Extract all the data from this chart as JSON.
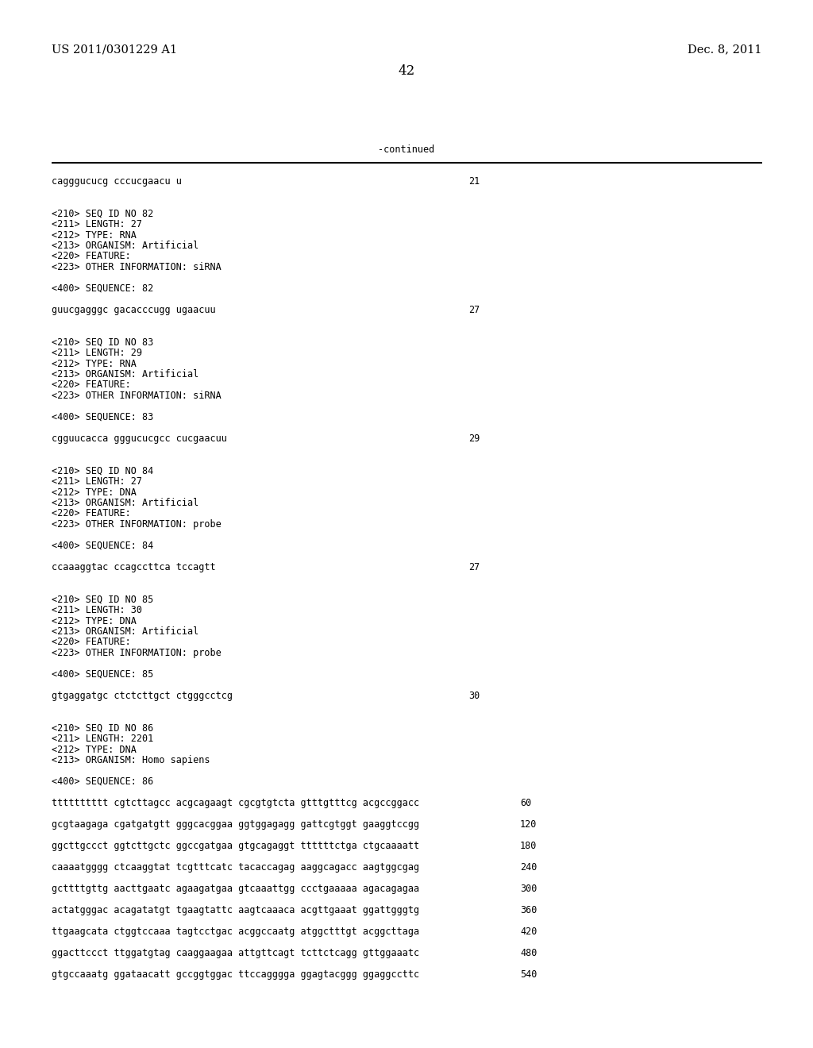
{
  "background_color": "#ffffff",
  "header_left": "US 2011/0301229 A1",
  "header_right": "Dec. 8, 2011",
  "page_number": "42",
  "continued_label": "-continued",
  "text_color": "#000000",
  "font_size_header": 10.5,
  "font_size_content": 8.5,
  "font_size_page": 12,
  "content_lines": [
    {
      "text": "cagggucucg cccucgaacu u",
      "num": "21",
      "blank_after": 2
    },
    {
      "text": "<210> SEQ ID NO 82",
      "num": null,
      "blank_after": 0
    },
    {
      "text": "<211> LENGTH: 27",
      "num": null,
      "blank_after": 0
    },
    {
      "text": "<212> TYPE: RNA",
      "num": null,
      "blank_after": 0
    },
    {
      "text": "<213> ORGANISM: Artificial",
      "num": null,
      "blank_after": 0
    },
    {
      "text": "<220> FEATURE:",
      "num": null,
      "blank_after": 0
    },
    {
      "text": "<223> OTHER INFORMATION: siRNA",
      "num": null,
      "blank_after": 1
    },
    {
      "text": "<400> SEQUENCE: 82",
      "num": null,
      "blank_after": 1
    },
    {
      "text": "guucgagggc gacacccugg ugaacuu",
      "num": "27",
      "blank_after": 2
    },
    {
      "text": "<210> SEQ ID NO 83",
      "num": null,
      "blank_after": 0
    },
    {
      "text": "<211> LENGTH: 29",
      "num": null,
      "blank_after": 0
    },
    {
      "text": "<212> TYPE: RNA",
      "num": null,
      "blank_after": 0
    },
    {
      "text": "<213> ORGANISM: Artificial",
      "num": null,
      "blank_after": 0
    },
    {
      "text": "<220> FEATURE:",
      "num": null,
      "blank_after": 0
    },
    {
      "text": "<223> OTHER INFORMATION: siRNA",
      "num": null,
      "blank_after": 1
    },
    {
      "text": "<400> SEQUENCE: 83",
      "num": null,
      "blank_after": 1
    },
    {
      "text": "cgguucacca gggucucgcc cucgaacuu",
      "num": "29",
      "blank_after": 2
    },
    {
      "text": "<210> SEQ ID NO 84",
      "num": null,
      "blank_after": 0
    },
    {
      "text": "<211> LENGTH: 27",
      "num": null,
      "blank_after": 0
    },
    {
      "text": "<212> TYPE: DNA",
      "num": null,
      "blank_after": 0
    },
    {
      "text": "<213> ORGANISM: Artificial",
      "num": null,
      "blank_after": 0
    },
    {
      "text": "<220> FEATURE:",
      "num": null,
      "blank_after": 0
    },
    {
      "text": "<223> OTHER INFORMATION: probe",
      "num": null,
      "blank_after": 1
    },
    {
      "text": "<400> SEQUENCE: 84",
      "num": null,
      "blank_after": 1
    },
    {
      "text": "ccaaaggtac ccagccttca tccagtt",
      "num": "27",
      "blank_after": 2
    },
    {
      "text": "<210> SEQ ID NO 85",
      "num": null,
      "blank_after": 0
    },
    {
      "text": "<211> LENGTH: 30",
      "num": null,
      "blank_after": 0
    },
    {
      "text": "<212> TYPE: DNA",
      "num": null,
      "blank_after": 0
    },
    {
      "text": "<213> ORGANISM: Artificial",
      "num": null,
      "blank_after": 0
    },
    {
      "text": "<220> FEATURE:",
      "num": null,
      "blank_after": 0
    },
    {
      "text": "<223> OTHER INFORMATION: probe",
      "num": null,
      "blank_after": 1
    },
    {
      "text": "<400> SEQUENCE: 85",
      "num": null,
      "blank_after": 1
    },
    {
      "text": "gtgaggatgc ctctcttgct ctgggcctcg",
      "num": "30",
      "blank_after": 2
    },
    {
      "text": "<210> SEQ ID NO 86",
      "num": null,
      "blank_after": 0
    },
    {
      "text": "<211> LENGTH: 2201",
      "num": null,
      "blank_after": 0
    },
    {
      "text": "<212> TYPE: DNA",
      "num": null,
      "blank_after": 0
    },
    {
      "text": "<213> ORGANISM: Homo sapiens",
      "num": null,
      "blank_after": 1
    },
    {
      "text": "<400> SEQUENCE: 86",
      "num": null,
      "blank_after": 1
    },
    {
      "text": "tttttttttt cgtcttagcc acgcagaagt cgcgtgtcta gtttgtttcg acgccggacc",
      "num": "60",
      "blank_after": 1
    },
    {
      "text": "gcgtaagaga cgatgatgtt gggcacggaa ggtggagagg gattcgtggt gaaggtccgg",
      "num": "120",
      "blank_after": 1
    },
    {
      "text": "ggcttgccct ggtcttgctc ggccgatgaa gtgcagaggt ttttttctga ctgcaaaatt",
      "num": "180",
      "blank_after": 1
    },
    {
      "text": "caaaatgggg ctcaaggtat tcgtttcatc tacaccagag aaggcagacc aagtggcgag",
      "num": "240",
      "blank_after": 1
    },
    {
      "text": "gcttttgttg aacttgaatc agaagatgaa gtcaaattgg ccctgaaaaa agacagagaa",
      "num": "300",
      "blank_after": 1
    },
    {
      "text": "actatgggac acagatatgt tgaagtattc aagtcaaaca acgttgaaat ggattgggtg",
      "num": "360",
      "blank_after": 1
    },
    {
      "text": "ttgaagcata ctggtccaaa tagtcctgac acggccaatg atggctttgt acggcttaga",
      "num": "420",
      "blank_after": 1
    },
    {
      "text": "ggacttccct ttggatgtag caaggaagaa attgttcagt tcttctcagg gttggaaatc",
      "num": "480",
      "blank_after": 1
    },
    {
      "text": "gtgccaaatg ggataacatt gccggtggac ttccagggga ggagtacggg ggaggccttc",
      "num": "540",
      "blank_after": 0
    }
  ]
}
